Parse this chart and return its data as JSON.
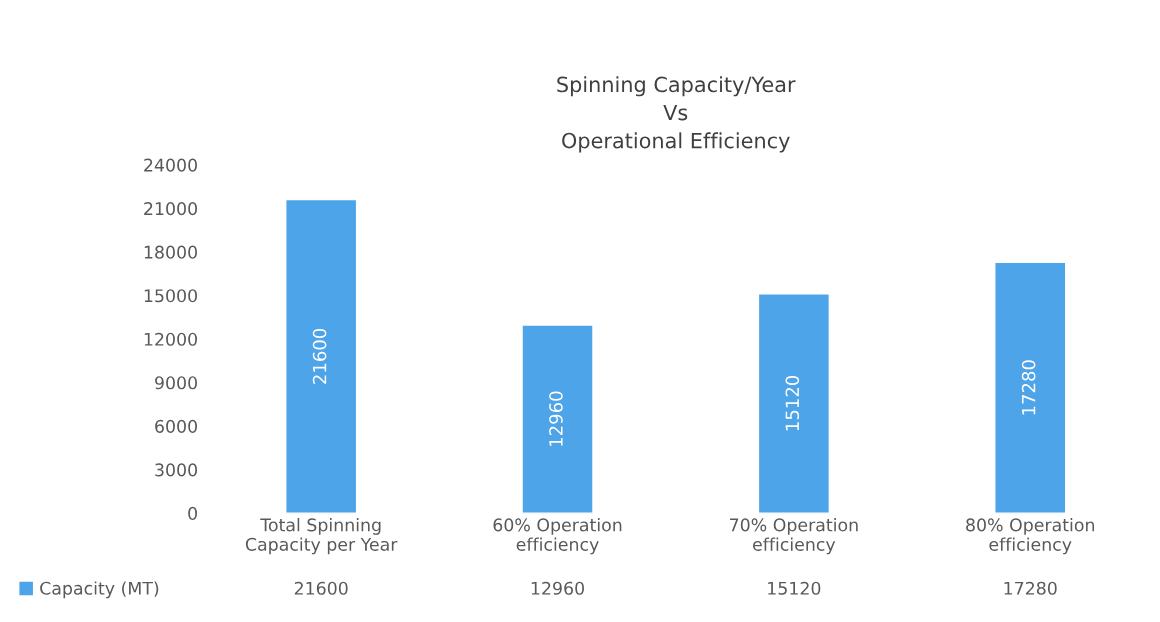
{
  "chart_data": {
    "type": "bar",
    "title": "Spinning Capacity/Year\nVs\nOperational Efficiency",
    "categories": [
      "Total Spinning\nCapacity per Year",
      "60% Operation\nefficiency",
      "70% Operation\nefficiency",
      "80% Operation\nefficiency"
    ],
    "series": [
      {
        "name": "Capacity (MT)",
        "color": "#4ea4e8",
        "values": [
          21600,
          12960,
          15120,
          17280
        ],
        "value_labels": [
          "21600",
          "12960",
          "15120",
          "17280"
        ]
      }
    ],
    "ylim": [
      0,
      24000
    ],
    "yticks": [
      0,
      3000,
      6000,
      9000,
      12000,
      15000,
      18000,
      21000,
      24000
    ],
    "annotations": [
      "21600",
      "12960",
      "15120",
      "17280"
    ],
    "grid": false,
    "legend": "bottom"
  }
}
